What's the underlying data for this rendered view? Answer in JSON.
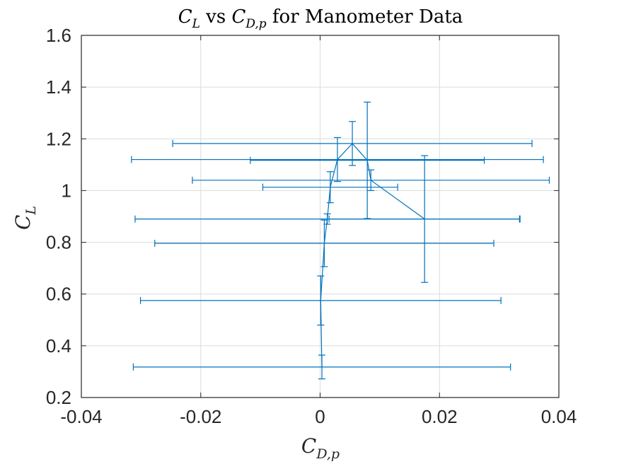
{
  "chart_data": {
    "type": "errorbar",
    "title_parts": {
      "main": "C",
      "main_sub": "L",
      "mid": " vs ",
      "second": "C",
      "second_sub": "D,p",
      "rest": " for Manometer Data"
    },
    "xlabel_parts": {
      "main": "C",
      "sub": "D,p"
    },
    "ylabel_parts": {
      "main": "C",
      "sub": "L"
    },
    "xlim": [
      -0.04,
      0.04
    ],
    "ylim": [
      0.2,
      1.6
    ],
    "xticks": [
      -0.04,
      -0.02,
      0,
      0.02,
      0.04
    ],
    "xtick_labels": [
      "-0.04",
      "-0.02",
      "0",
      "0.02",
      "0.04"
    ],
    "yticks": [
      0.2,
      0.4,
      0.6,
      0.8,
      1.0,
      1.2,
      1.4,
      1.6
    ],
    "ytick_labels": [
      "0.2",
      "0.4",
      "0.6",
      "0.8",
      "1",
      "1.2",
      "1.4",
      "1.6"
    ],
    "grid": true,
    "series_color": "#0072BD",
    "points": [
      {
        "x": 0.0003,
        "y": 0.318,
        "xerr": 0.0316,
        "yerr": 0.046
      },
      {
        "x": 0.0001,
        "y": 0.575,
        "xerr": 0.0302,
        "yerr": 0.095
      },
      {
        "x": 0.0007,
        "y": 0.796,
        "xerr": 0.0284,
        "yerr": 0.09
      },
      {
        "x": 0.0012,
        "y": 0.89,
        "xerr": 0.0322,
        "yerr": 0.02
      },
      {
        "x": 0.0017,
        "y": 1.013,
        "xerr": 0.0113,
        "yerr": 0.06
      },
      {
        "x": 0.0029,
        "y": 1.12,
        "xerr": 0.0345,
        "yerr": 0.085
      },
      {
        "x": 0.0054,
        "y": 1.182,
        "xerr": 0.0301,
        "yerr": 0.085
      },
      {
        "x": 0.0079,
        "y": 1.117,
        "xerr": 0.0196,
        "yerr": 0.225
      },
      {
        "x": 0.0085,
        "y": 1.04,
        "xerr": 0.0299,
        "yerr": 0.04
      },
      {
        "x": 0.0175,
        "y": 0.89,
        "xerr": 0.016,
        "yerr": 0.245
      }
    ]
  }
}
